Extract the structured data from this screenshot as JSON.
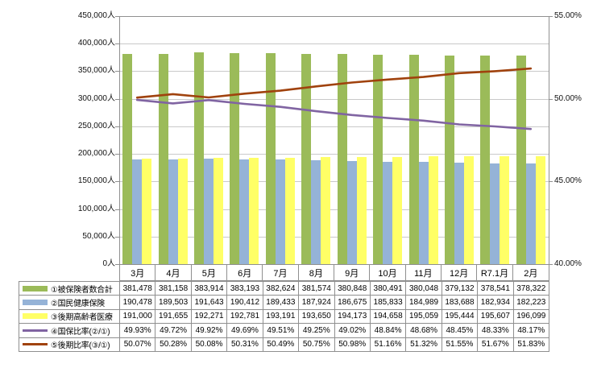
{
  "chart_data": {
    "type": "bar+line",
    "title": "",
    "categories": [
      "3月",
      "4月",
      "5月",
      "6月",
      "7月",
      "8月",
      "9月",
      "10月",
      "11月",
      "12月",
      "R7.1月",
      "2月"
    ],
    "series": [
      {
        "name": "①被保険者数合計",
        "type": "bar",
        "axis": "left",
        "color": "#9BBB59",
        "values": [
          381478,
          381158,
          383914,
          383193,
          382624,
          381574,
          380848,
          380491,
          380048,
          379132,
          378541,
          378322
        ]
      },
      {
        "name": "②国民健康保険",
        "type": "bar",
        "axis": "left",
        "color": "#95B3D7",
        "values": [
          190478,
          189503,
          191643,
          190412,
          189433,
          187924,
          186675,
          185833,
          184989,
          183688,
          182934,
          182223
        ]
      },
      {
        "name": "③後期高齢者医療",
        "type": "bar",
        "axis": "left",
        "color": "#FFFF66",
        "values": [
          191000,
          191655,
          192271,
          192781,
          193191,
          193650,
          194173,
          194658,
          195059,
          195444,
          195607,
          196099
        ]
      },
      {
        "name": "④国保比率(②/①)",
        "type": "line",
        "axis": "right",
        "color": "#8064A2",
        "values": [
          49.93,
          49.72,
          49.92,
          49.69,
          49.51,
          49.25,
          49.02,
          48.84,
          48.68,
          48.45,
          48.33,
          48.17
        ]
      },
      {
        "name": "⑤後期比率(③/①)",
        "type": "line",
        "axis": "right",
        "color": "#A0420D",
        "values": [
          50.07,
          50.28,
          50.08,
          50.31,
          50.49,
          50.75,
          50.98,
          51.16,
          51.32,
          51.55,
          51.67,
          51.83
        ]
      }
    ],
    "left_axis": {
      "min": 0,
      "max": 450000,
      "step": 50000,
      "unit": "人"
    },
    "right_axis": {
      "min": 40,
      "max": 55,
      "step": 5,
      "unit": "%",
      "decimals": 2
    },
    "grid": true,
    "legend_position": "data-table-left",
    "grid_color": "#C9C9C9",
    "axis_color": "#909090",
    "table_border_color": "#8F8F8F"
  }
}
